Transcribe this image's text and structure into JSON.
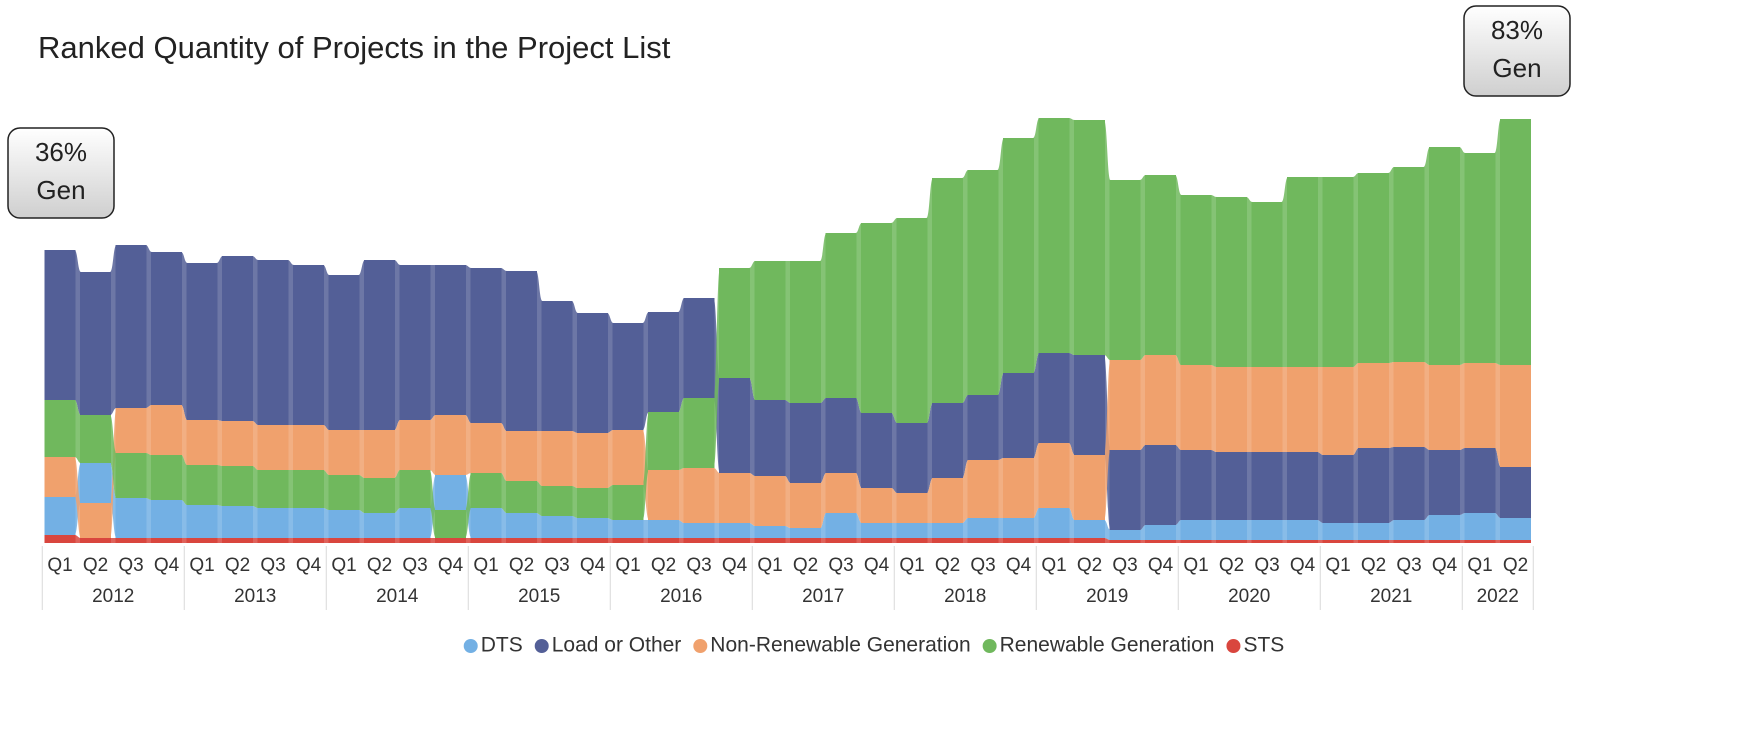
{
  "chart_data": {
    "type": "ribbon",
    "title": "Ranked Quantity of Projects in the Project List",
    "categories": [
      "Q1",
      "Q2",
      "Q3",
      "Q4",
      "Q1",
      "Q2",
      "Q3",
      "Q4",
      "Q1",
      "Q2",
      "Q3",
      "Q4",
      "Q1",
      "Q2",
      "Q3",
      "Q4",
      "Q1",
      "Q2",
      "Q3",
      "Q4",
      "Q1",
      "Q2",
      "Q3",
      "Q4",
      "Q1",
      "Q2",
      "Q3",
      "Q4",
      "Q1",
      "Q2",
      "Q3",
      "Q4",
      "Q1",
      "Q2",
      "Q3",
      "Q4",
      "Q1",
      "Q2",
      "Q3",
      "Q4",
      "Q1",
      "Q2"
    ],
    "years": [
      "2012",
      "2013",
      "2014",
      "2015",
      "2016",
      "2017",
      "2018",
      "2019",
      "2020",
      "2021",
      "2022"
    ],
    "series": [
      {
        "name": "DTS",
        "color": "#73b0e4",
        "values": [
          38,
          40,
          40,
          38,
          33,
          32,
          30,
          30,
          28,
          25,
          30,
          35,
          30,
          25,
          22,
          20,
          18,
          18,
          15,
          15,
          12,
          10,
          25,
          15,
          15,
          15,
          20,
          20,
          30,
          18,
          10,
          15,
          20,
          20,
          20,
          20,
          17,
          17,
          20,
          25,
          27,
          22
        ]
      },
      {
        "name": "Load or Other",
        "color": "#535f97",
        "values": [
          150,
          143,
          163,
          153,
          157,
          165,
          165,
          160,
          155,
          170,
          155,
          150,
          155,
          160,
          130,
          120,
          107,
          100,
          100,
          95,
          76,
          80,
          75,
          75,
          70,
          75,
          65,
          85,
          90,
          100,
          80,
          80,
          70,
          68,
          68,
          68,
          68,
          75,
          73,
          65,
          65,
          51
        ]
      },
      {
        "name": "Non-Renewable Generation",
        "color": "#f0a16d",
        "values": [
          40,
          35,
          45,
          50,
          45,
          45,
          45,
          45,
          45,
          48,
          50,
          60,
          50,
          50,
          55,
          55,
          55,
          50,
          55,
          50,
          50,
          45,
          40,
          35,
          30,
          45,
          58,
          60,
          65,
          65,
          90,
          90,
          85,
          85,
          85,
          85,
          88,
          85,
          85,
          85,
          85,
          102
        ]
      },
      {
        "name": "Renewable Generation",
        "color": "#70b85d",
        "values": [
          57,
          48,
          45,
          45,
          40,
          40,
          38,
          38,
          35,
          35,
          38,
          28,
          35,
          32,
          30,
          30,
          35,
          58,
          70,
          110,
          139,
          142,
          165,
          190,
          205,
          225,
          225,
          235,
          235,
          235,
          180,
          180,
          170,
          170,
          165,
          190,
          190,
          190,
          195,
          218,
          210,
          246
        ]
      },
      {
        "name": "STS",
        "color": "#d9463e",
        "values": [
          8,
          5,
          5,
          5,
          5,
          5,
          5,
          5,
          5,
          5,
          5,
          5,
          5,
          5,
          5,
          5,
          5,
          5,
          5,
          5,
          5,
          5,
          5,
          5,
          5,
          5,
          5,
          5,
          5,
          5,
          3,
          3,
          3,
          3,
          3,
          3,
          3,
          3,
          3,
          3,
          3,
          3
        ]
      }
    ],
    "ylim": [
      0,
      440
    ],
    "annotations": [
      {
        "lines": [
          "36%",
          "Gen"
        ]
      },
      {
        "lines": [
          "83%",
          "Gen"
        ]
      }
    ]
  }
}
